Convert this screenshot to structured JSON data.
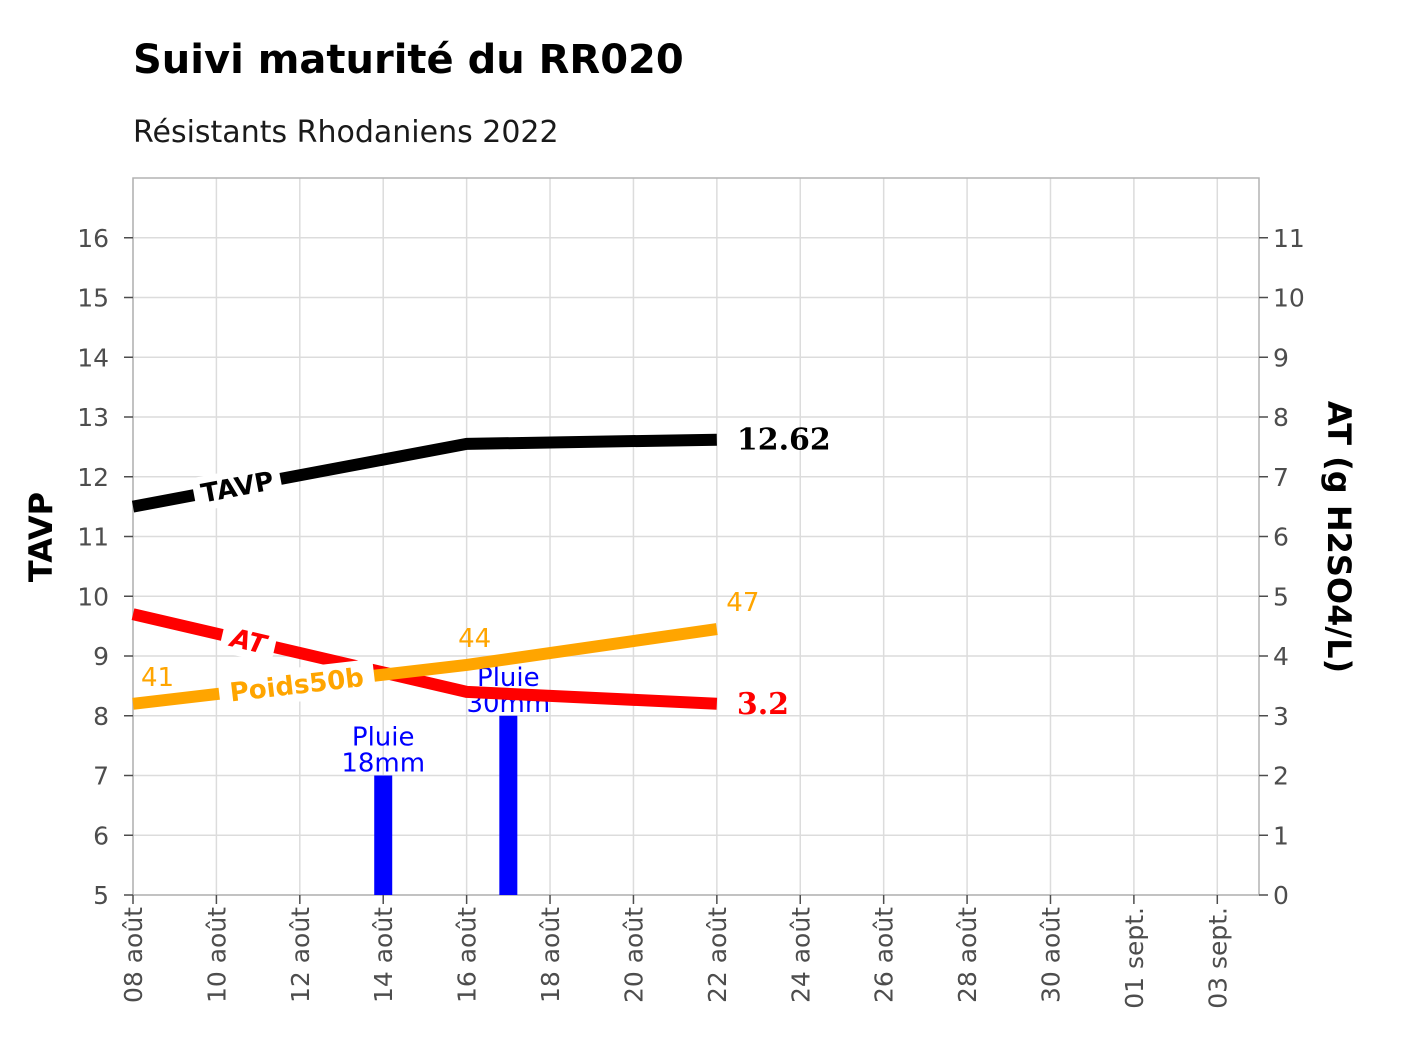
{
  "chart_data": {
    "type": "line",
    "title": "Suivi maturité du RR020",
    "subtitle": "Résistants Rhodaniens 2022",
    "ylabel_left": "TAVP",
    "ylabel_right": "AT (g H2SO4/L)",
    "ylim_left": [
      5,
      17
    ],
    "ylim_right": [
      0,
      12
    ],
    "yticks_left": [
      5,
      6,
      7,
      8,
      9,
      10,
      11,
      12,
      13,
      14,
      15,
      16
    ],
    "yticks_right": [
      0,
      1,
      2,
      3,
      4,
      5,
      6,
      7,
      8,
      9,
      10,
      11
    ],
    "xlim": [
      "2022-08-08",
      "2022-09-04"
    ],
    "x_ticks": [
      {
        "date": "2022-08-08",
        "label": "08 août"
      },
      {
        "date": "2022-08-10",
        "label": "10 août"
      },
      {
        "date": "2022-08-12",
        "label": "12 août"
      },
      {
        "date": "2022-08-14",
        "label": "14 août"
      },
      {
        "date": "2022-08-16",
        "label": "16 août"
      },
      {
        "date": "2022-08-18",
        "label": "18 août"
      },
      {
        "date": "2022-08-20",
        "label": "20 août"
      },
      {
        "date": "2022-08-22",
        "label": "22 août"
      },
      {
        "date": "2022-08-24",
        "label": "24 août"
      },
      {
        "date": "2022-08-26",
        "label": "26 août"
      },
      {
        "date": "2022-08-28",
        "label": "28 août"
      },
      {
        "date": "2022-08-30",
        "label": "30 août"
      },
      {
        "date": "2022-09-01",
        "label": "01 sept."
      },
      {
        "date": "2022-09-03",
        "label": "03 sept."
      }
    ],
    "grid": true,
    "series": [
      {
        "name": "TAVP",
        "axis": "left",
        "color": "#000000",
        "x": [
          "2022-08-08",
          "2022-08-16",
          "2022-08-22"
        ],
        "y": [
          11.5,
          12.55,
          12.62
        ],
        "end_label": "12.62"
      },
      {
        "name": "AT",
        "axis": "right",
        "color": "#ff0000",
        "x": [
          "2022-08-08",
          "2022-08-16",
          "2022-08-22"
        ],
        "y": [
          4.7,
          3.4,
          3.2
        ],
        "end_label": "3.2"
      },
      {
        "name": "Poids50b",
        "axis": "left",
        "color": "#ffa500",
        "x": [
          "2022-08-08",
          "2022-08-16",
          "2022-08-22"
        ],
        "y": [
          8.2,
          8.85,
          9.45
        ],
        "point_labels": [
          "41",
          "44",
          "47"
        ]
      }
    ],
    "rain": {
      "color": "#0000ff",
      "bars": [
        {
          "date": "2022-08-14",
          "top": 7.0,
          "label_line1": "Pluie",
          "label_line2": "18mm"
        },
        {
          "date": "2022-08-17",
          "top": 8.0,
          "label_line1": "Pluie",
          "label_line2": "30mm"
        }
      ]
    }
  }
}
